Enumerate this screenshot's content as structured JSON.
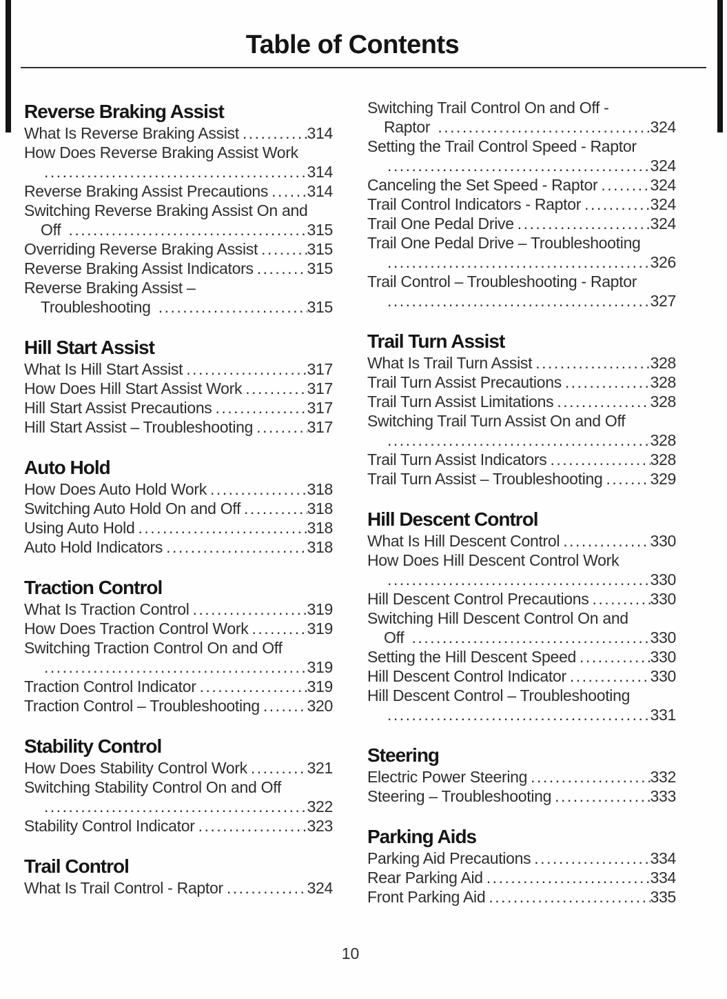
{
  "page": {
    "title": "Table of Contents",
    "page_number": "10",
    "colors": {
      "text": "#2e2e2e",
      "heading": "#161616",
      "rule": "#2f2f2f",
      "edge_bar": "#141414",
      "background": "#fefefe"
    }
  },
  "columns": [
    {
      "sections": [
        {
          "heading": "Reverse Braking Assist",
          "entries": [
            {
              "lines": [
                {
                  "t": "What Is Reverse Braking Assist",
                  "page": "314"
                }
              ]
            },
            {
              "lines": [
                {
                  "t": "How Does Reverse Braking Assist Work"
                },
                {
                  "t": "",
                  "cont": true,
                  "page": "314"
                }
              ]
            },
            {
              "lines": [
                {
                  "t": "Reverse Braking Assist Precautions",
                  "page": "314"
                }
              ]
            },
            {
              "lines": [
                {
                  "t": "Switching Reverse Braking Assist On and"
                },
                {
                  "t": "Off ",
                  "cont": true,
                  "page": "315"
                }
              ]
            },
            {
              "lines": [
                {
                  "t": "Overriding Reverse Braking Assist",
                  "page": "315"
                }
              ]
            },
            {
              "lines": [
                {
                  "t": "Reverse Braking Assist Indicators",
                  "page": "315"
                }
              ]
            },
            {
              "lines": [
                {
                  "t": "Reverse Braking Assist –"
                },
                {
                  "t": "Troubleshooting ",
                  "cont": true,
                  "page": "315"
                }
              ]
            }
          ]
        },
        {
          "heading": "Hill Start Assist",
          "entries": [
            {
              "lines": [
                {
                  "t": "What Is Hill Start Assist",
                  "page": "317"
                }
              ]
            },
            {
              "lines": [
                {
                  "t": "How Does Hill Start Assist Work",
                  "page": "317"
                }
              ]
            },
            {
              "lines": [
                {
                  "t": "Hill Start Assist Precautions",
                  "page": "317"
                }
              ]
            },
            {
              "lines": [
                {
                  "t": "Hill Start Assist – Troubleshooting",
                  "page": "317"
                }
              ]
            }
          ]
        },
        {
          "heading": "Auto Hold",
          "entries": [
            {
              "lines": [
                {
                  "t": "How Does Auto Hold Work",
                  "page": "318"
                }
              ]
            },
            {
              "lines": [
                {
                  "t": "Switching Auto Hold On and Off",
                  "page": "318"
                }
              ]
            },
            {
              "lines": [
                {
                  "t": "Using Auto Hold",
                  "page": "318"
                }
              ]
            },
            {
              "lines": [
                {
                  "t": "Auto Hold Indicators",
                  "page": "318"
                }
              ]
            }
          ]
        },
        {
          "heading": "Traction Control",
          "entries": [
            {
              "lines": [
                {
                  "t": "What Is Traction Control",
                  "page": "319"
                }
              ]
            },
            {
              "lines": [
                {
                  "t": "How Does Traction Control Work",
                  "page": "319"
                }
              ]
            },
            {
              "lines": [
                {
                  "t": "Switching Traction Control On and Off"
                },
                {
                  "t": "",
                  "cont": true,
                  "page": "319"
                }
              ]
            },
            {
              "lines": [
                {
                  "t": "Traction Control Indicator",
                  "page": "319"
                }
              ]
            },
            {
              "lines": [
                {
                  "t": "Traction Control – Troubleshooting",
                  "page": "320"
                }
              ]
            }
          ]
        },
        {
          "heading": "Stability Control",
          "entries": [
            {
              "lines": [
                {
                  "t": "How Does Stability Control Work",
                  "page": "321"
                }
              ]
            },
            {
              "lines": [
                {
                  "t": "Switching Stability Control On and Off"
                },
                {
                  "t": "",
                  "cont": true,
                  "page": "322"
                }
              ]
            },
            {
              "lines": [
                {
                  "t": "Stability Control Indicator",
                  "page": "323"
                }
              ]
            }
          ]
        },
        {
          "heading": "Trail Control",
          "entries": [
            {
              "lines": [
                {
                  "t": "What Is Trail Control - Raptor",
                  "page": "324"
                }
              ]
            }
          ]
        }
      ]
    },
    {
      "sections": [
        {
          "heading": "",
          "entries": [
            {
              "lines": [
                {
                  "t": "Switching Trail Control On and Off -"
                },
                {
                  "t": "Raptor ",
                  "cont": true,
                  "page": "324"
                }
              ]
            },
            {
              "lines": [
                {
                  "t": "Setting the Trail Control Speed - Raptor"
                },
                {
                  "t": "",
                  "cont": true,
                  "page": "324"
                }
              ]
            },
            {
              "lines": [
                {
                  "t": "Canceling the Set Speed - Raptor",
                  "page": "324"
                }
              ]
            },
            {
              "lines": [
                {
                  "t": "Trail Control Indicators - Raptor",
                  "page": "324"
                }
              ]
            },
            {
              "lines": [
                {
                  "t": "Trail One Pedal Drive",
                  "page": "324"
                }
              ]
            },
            {
              "lines": [
                {
                  "t": "Trail One Pedal Drive – Troubleshooting"
                },
                {
                  "t": "",
                  "cont": true,
                  "page": "326"
                }
              ]
            },
            {
              "lines": [
                {
                  "t": "Trail Control – Troubleshooting - Raptor"
                },
                {
                  "t": "",
                  "cont": true,
                  "page": "327"
                }
              ]
            }
          ]
        },
        {
          "heading": "Trail Turn Assist",
          "entries": [
            {
              "lines": [
                {
                  "t": "What Is Trail Turn Assist",
                  "page": "328"
                }
              ]
            },
            {
              "lines": [
                {
                  "t": "Trail Turn Assist Precautions",
                  "page": "328"
                }
              ]
            },
            {
              "lines": [
                {
                  "t": "Trail Turn Assist Limitations",
                  "page": "328"
                }
              ]
            },
            {
              "lines": [
                {
                  "t": "Switching Trail Turn Assist On and Off"
                },
                {
                  "t": "",
                  "cont": true,
                  "page": "328"
                }
              ]
            },
            {
              "lines": [
                {
                  "t": "Trail Turn Assist Indicators",
                  "page": "328"
                }
              ]
            },
            {
              "lines": [
                {
                  "t": "Trail Turn Assist – Troubleshooting",
                  "page": "329"
                }
              ]
            }
          ]
        },
        {
          "heading": "Hill Descent Control",
          "entries": [
            {
              "lines": [
                {
                  "t": "What Is Hill Descent Control",
                  "page": "330"
                }
              ]
            },
            {
              "lines": [
                {
                  "t": "How Does Hill Descent Control Work"
                },
                {
                  "t": "",
                  "cont": true,
                  "page": "330"
                }
              ]
            },
            {
              "lines": [
                {
                  "t": "Hill Descent Control Precautions",
                  "page": "330"
                }
              ]
            },
            {
              "lines": [
                {
                  "t": "Switching Hill Descent Control On and"
                },
                {
                  "t": "Off ",
                  "cont": true,
                  "page": "330"
                }
              ]
            },
            {
              "lines": [
                {
                  "t": "Setting the Hill Descent Speed",
                  "page": "330"
                }
              ]
            },
            {
              "lines": [
                {
                  "t": "Hill Descent Control Indicator",
                  "page": "330"
                }
              ]
            },
            {
              "lines": [
                {
                  "t": "Hill Descent Control – Troubleshooting"
                },
                {
                  "t": "",
                  "cont": true,
                  "page": "331"
                }
              ]
            }
          ]
        },
        {
          "heading": "Steering",
          "entries": [
            {
              "lines": [
                {
                  "t": "Electric Power Steering",
                  "page": "332"
                }
              ]
            },
            {
              "lines": [
                {
                  "t": "Steering – Troubleshooting",
                  "page": "333"
                }
              ]
            }
          ]
        },
        {
          "heading": "Parking Aids",
          "entries": [
            {
              "lines": [
                {
                  "t": "Parking Aid Precautions",
                  "page": "334"
                }
              ]
            },
            {
              "lines": [
                {
                  "t": "Rear Parking Aid",
                  "page": "334"
                }
              ]
            },
            {
              "lines": [
                {
                  "t": "Front Parking Aid",
                  "page": "335"
                }
              ]
            }
          ]
        }
      ]
    }
  ]
}
